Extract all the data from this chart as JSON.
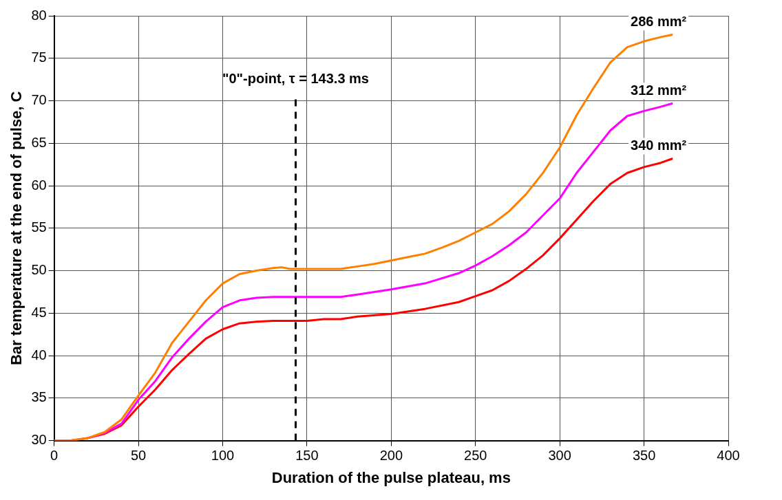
{
  "chart_data": {
    "type": "line",
    "xlabel": "Duration of the pulse plateau, ms",
    "ylabel": "Bar temperature at the end of pulse, C",
    "xlim": [
      0,
      400
    ],
    "xticks": [
      0,
      50,
      100,
      150,
      200,
      250,
      300,
      350,
      400
    ],
    "ylim": [
      30,
      80
    ],
    "yticks": [
      30,
      35,
      40,
      45,
      50,
      55,
      60,
      65,
      70,
      75,
      80
    ],
    "grid": true,
    "legend": false,
    "marker": "none",
    "line_style": "solid",
    "series": [
      {
        "name": "286 mm²",
        "color": "#ff7f00",
        "x": [
          0,
          10,
          20,
          30,
          40,
          50,
          60,
          70,
          80,
          90,
          100,
          110,
          120,
          130,
          135,
          140,
          150,
          160,
          170,
          180,
          190,
          200,
          210,
          220,
          230,
          240,
          250,
          260,
          270,
          280,
          290,
          300,
          310,
          320,
          330,
          340,
          350,
          360,
          367
        ],
        "values": [
          30,
          30,
          30.3,
          31,
          32.5,
          35.3,
          38,
          41.5,
          44,
          46.5,
          48.5,
          49.6,
          50,
          50.3,
          50.4,
          50.2,
          50.2,
          50.2,
          50.2,
          50.5,
          50.8,
          51.2,
          51.6,
          52,
          52.7,
          53.5,
          54.5,
          55.5,
          57,
          59,
          61.5,
          64.5,
          68.3,
          71.5,
          74.5,
          76.3,
          77,
          77.5,
          77.8
        ]
      },
      {
        "name": "312 mm²",
        "color": "#ff00ff",
        "x": [
          20,
          30,
          40,
          50,
          60,
          70,
          80,
          90,
          100,
          110,
          120,
          130,
          140,
          170,
          180,
          200,
          220,
          240,
          250,
          260,
          270,
          280,
          290,
          300,
          310,
          320,
          330,
          340,
          350,
          360,
          367
        ],
        "values": [
          30.3,
          30.9,
          32,
          34.8,
          37,
          39.8,
          42,
          44,
          45.7,
          46.5,
          46.8,
          46.9,
          46.9,
          46.9,
          47.2,
          47.8,
          48.5,
          49.7,
          50.6,
          51.7,
          53,
          54.5,
          56.5,
          58.5,
          61.5,
          64,
          66.5,
          68.2,
          68.8,
          69.3,
          69.7
        ]
      },
      {
        "name": "340 mm²",
        "color": "#ff0000",
        "x": [
          0,
          10,
          20,
          30,
          40,
          50,
          60,
          70,
          80,
          90,
          100,
          110,
          120,
          130,
          140,
          150,
          160,
          170,
          180,
          200,
          220,
          240,
          250,
          260,
          270,
          280,
          290,
          300,
          310,
          320,
          330,
          340,
          350,
          360,
          367
        ],
        "values": [
          30,
          30,
          30.3,
          30.8,
          31.8,
          34,
          36,
          38.3,
          40.2,
          42,
          43.1,
          43.8,
          44,
          44.1,
          44.1,
          44.1,
          44.3,
          44.3,
          44.6,
          44.9,
          45.5,
          46.3,
          47,
          47.7,
          48.8,
          50.2,
          51.8,
          53.8,
          56,
          58.2,
          60.2,
          61.5,
          62.2,
          62.7,
          63.2
        ]
      }
    ],
    "ref_lines": [
      {
        "axis": "x",
        "value": 143.3,
        "label": "\"0\"-point, τ = 143.3 ms",
        "color": "#000000",
        "line_style": "dashed"
      }
    ]
  }
}
